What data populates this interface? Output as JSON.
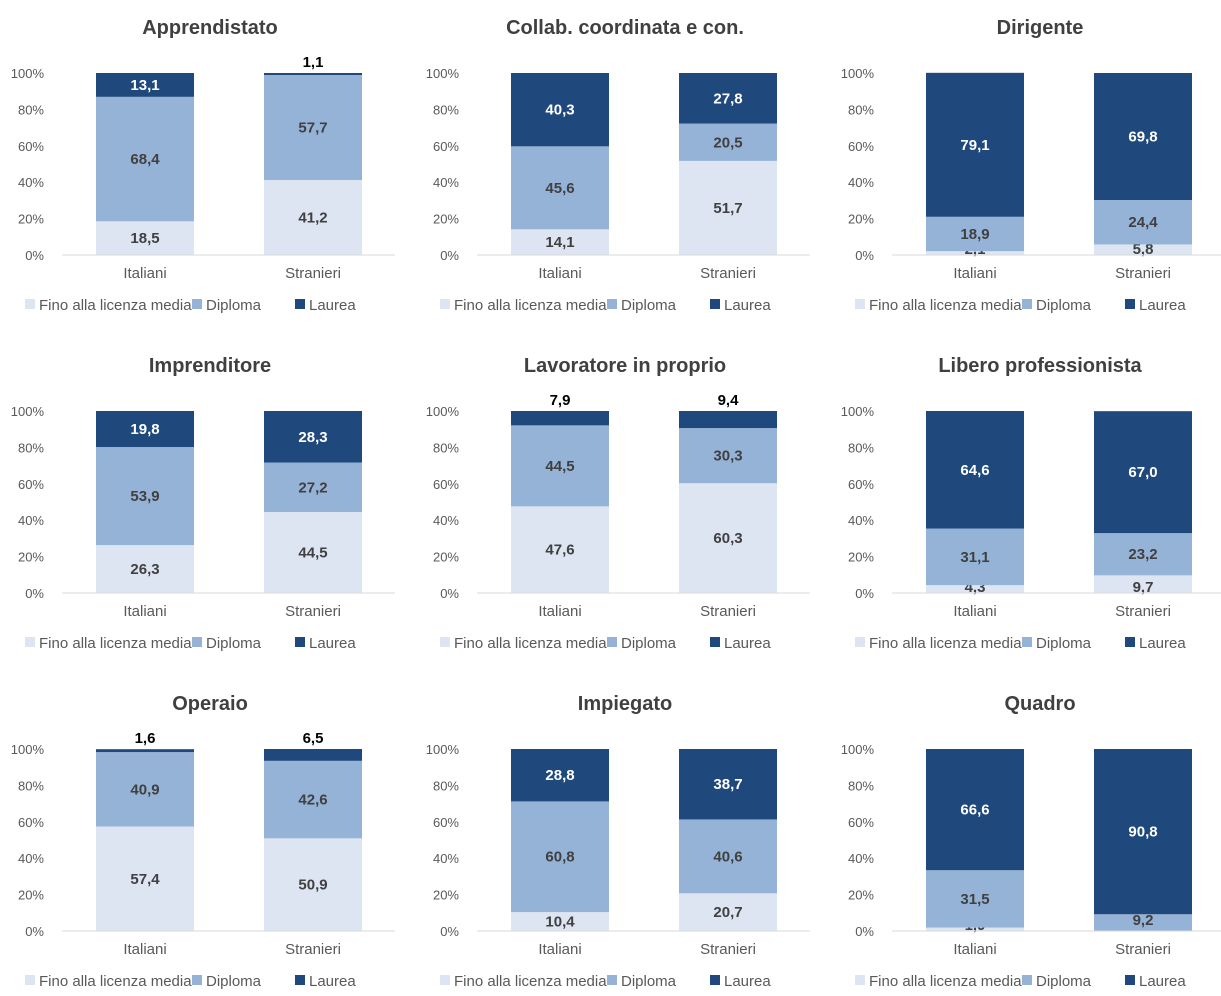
{
  "colors": {
    "fino": "#dde5f2",
    "diploma": "#95b3d7",
    "laurea": "#1f497d",
    "label_dark": "#404040",
    "label_light": "#ffffff",
    "label_above": "#000000"
  },
  "legend": [
    "Fino alla licenza media",
    "Diploma",
    "Laurea"
  ],
  "y_ticks": [
    "0%",
    "20%",
    "40%",
    "60%",
    "80%",
    "100%"
  ],
  "chart_data": [
    {
      "type": "bar",
      "stacked": true,
      "title": "Apprendistato",
      "categories": [
        "Italiani",
        "Stranieri"
      ],
      "ylim": [
        0,
        100
      ],
      "legend_position": "bottom",
      "series": [
        {
          "name": "Fino alla licenza media",
          "values": [
            18.5,
            41.2
          ],
          "labels": [
            "18,5",
            "41,2"
          ]
        },
        {
          "name": "Diploma",
          "values": [
            68.4,
            57.7
          ],
          "labels": [
            "68,4",
            "57,7"
          ]
        },
        {
          "name": "Laurea",
          "values": [
            13.1,
            1.1
          ],
          "labels": [
            "13,1",
            "1,1"
          ]
        }
      ]
    },
    {
      "type": "bar",
      "stacked": true,
      "title": "Collab. coordinata e con.",
      "categories": [
        "Italiani",
        "Stranieri"
      ],
      "ylim": [
        0,
        100
      ],
      "legend_position": "bottom",
      "series": [
        {
          "name": "Fino alla licenza media",
          "values": [
            14.1,
            51.7
          ],
          "labels": [
            "14,1",
            "51,7"
          ]
        },
        {
          "name": "Diploma",
          "values": [
            45.6,
            20.5
          ],
          "labels": [
            "45,6",
            "20,5"
          ]
        },
        {
          "name": "Laurea",
          "values": [
            40.3,
            27.8
          ],
          "labels": [
            "40,3",
            "27,8"
          ]
        }
      ]
    },
    {
      "type": "bar",
      "stacked": true,
      "title": "Dirigente",
      "categories": [
        "Italiani",
        "Stranieri"
      ],
      "ylim": [
        0,
        100
      ],
      "legend_position": "bottom",
      "series": [
        {
          "name": "Fino alla licenza media",
          "values": [
            2.1,
            5.8
          ],
          "labels": [
            "2,1",
            "5,8"
          ]
        },
        {
          "name": "Diploma",
          "values": [
            18.9,
            24.4
          ],
          "labels": [
            "18,9",
            "24,4"
          ]
        },
        {
          "name": "Laurea",
          "values": [
            79.1,
            69.8
          ],
          "labels": [
            "79,1",
            "69,8"
          ]
        }
      ]
    },
    {
      "type": "bar",
      "stacked": true,
      "title": "Imprenditore",
      "categories": [
        "Italiani",
        "Stranieri"
      ],
      "ylim": [
        0,
        100
      ],
      "legend_position": "bottom",
      "series": [
        {
          "name": "Fino alla licenza media",
          "values": [
            26.3,
            44.5
          ],
          "labels": [
            "26,3",
            "44,5"
          ]
        },
        {
          "name": "Diploma",
          "values": [
            53.9,
            27.2
          ],
          "labels": [
            "53,9",
            "27,2"
          ]
        },
        {
          "name": "Laurea",
          "values": [
            19.8,
            28.3
          ],
          "labels": [
            "19,8",
            "28,3"
          ]
        }
      ]
    },
    {
      "type": "bar",
      "stacked": true,
      "title": "Lavoratore in proprio",
      "categories": [
        "Italiani",
        "Stranieri"
      ],
      "ylim": [
        0,
        100
      ],
      "legend_position": "bottom",
      "series": [
        {
          "name": "Fino alla licenza media",
          "values": [
            47.6,
            60.3
          ],
          "labels": [
            "47,6",
            "60,3"
          ]
        },
        {
          "name": "Diploma",
          "values": [
            44.5,
            30.3
          ],
          "labels": [
            "44,5",
            "30,3"
          ]
        },
        {
          "name": "Laurea",
          "values": [
            7.9,
            9.4
          ],
          "labels": [
            "7,9",
            "9,4"
          ]
        }
      ]
    },
    {
      "type": "bar",
      "stacked": true,
      "title": "Libero professionista",
      "categories": [
        "Italiani",
        "Stranieri"
      ],
      "ylim": [
        0,
        100
      ],
      "legend_position": "bottom",
      "series": [
        {
          "name": "Fino alla licenza media",
          "values": [
            4.3,
            9.7
          ],
          "labels": [
            "4,3",
            "9,7"
          ]
        },
        {
          "name": "Diploma",
          "values": [
            31.1,
            23.2
          ],
          "labels": [
            "31,1",
            "23,2"
          ]
        },
        {
          "name": "Laurea",
          "values": [
            64.6,
            67.0
          ],
          "labels": [
            "64,6",
            "67,0"
          ]
        }
      ]
    },
    {
      "type": "bar",
      "stacked": true,
      "title": "Operaio",
      "categories": [
        "Italiani",
        "Stranieri"
      ],
      "ylim": [
        0,
        100
      ],
      "legend_position": "bottom",
      "series": [
        {
          "name": "Fino alla licenza media",
          "values": [
            57.4,
            50.9
          ],
          "labels": [
            "57,4",
            "50,9"
          ]
        },
        {
          "name": "Diploma",
          "values": [
            40.9,
            42.6
          ],
          "labels": [
            "40,9",
            "42,6"
          ]
        },
        {
          "name": "Laurea",
          "values": [
            1.6,
            6.5
          ],
          "labels": [
            "1,6",
            "6,5"
          ]
        }
      ]
    },
    {
      "type": "bar",
      "stacked": true,
      "title": "Impiegato",
      "categories": [
        "Italiani",
        "Stranieri"
      ],
      "ylim": [
        0,
        100
      ],
      "legend_position": "bottom",
      "series": [
        {
          "name": "Fino alla licenza media",
          "values": [
            10.4,
            20.7
          ],
          "labels": [
            "10,4",
            "20,7"
          ]
        },
        {
          "name": "Diploma",
          "values": [
            60.8,
            40.6
          ],
          "labels": [
            "60,8",
            "40,6"
          ]
        },
        {
          "name": "Laurea",
          "values": [
            28.8,
            38.7
          ],
          "labels": [
            "28,8",
            "38,7"
          ]
        }
      ]
    },
    {
      "type": "bar",
      "stacked": true,
      "title": "Quadro",
      "categories": [
        "Italiani",
        "Stranieri"
      ],
      "ylim": [
        0,
        100
      ],
      "legend_position": "bottom",
      "series": [
        {
          "name": "Fino alla licenza media",
          "values": [
            1.9,
            0.0
          ],
          "labels": [
            "1,9",
            ""
          ]
        },
        {
          "name": "Diploma",
          "values": [
            31.5,
            9.2
          ],
          "labels": [
            "31,5",
            "9,2"
          ]
        },
        {
          "name": "Laurea",
          "values": [
            66.6,
            90.8
          ],
          "labels": [
            "66,6",
            "90,8"
          ]
        }
      ]
    }
  ]
}
